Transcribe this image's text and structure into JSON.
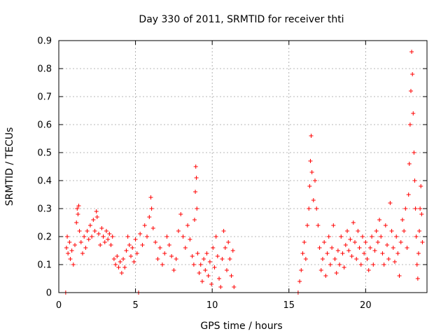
{
  "chart_data": {
    "type": "scatter",
    "title": "Day 330 of 2011, SRMTID for receiver thti",
    "xlabel": "GPS time / hours",
    "ylabel": "SRMTID / TECUs",
    "xlim": [
      0,
      24
    ],
    "ylim": [
      0,
      0.9
    ],
    "xticks": [
      0,
      5,
      10,
      15,
      20
    ],
    "xtick_labels": [
      "0",
      "5",
      "10",
      "15",
      "20"
    ],
    "yticks": [
      0,
      0.1,
      0.2,
      0.3,
      0.4,
      0.5,
      0.6,
      0.7,
      0.8,
      0.9
    ],
    "ytick_labels": [
      "0",
      "0.1",
      "0.2",
      "0.3",
      "0.4",
      "0.5",
      "0.6",
      "0.7",
      "0.8",
      "0.9"
    ],
    "grid": true,
    "marker": "+",
    "color": "#ff0000",
    "series": [
      {
        "name": "SRMTID",
        "points": [
          [
            0.45,
            0.0
          ],
          [
            5.2,
            0.0
          ],
          [
            0.5,
            0.16
          ],
          [
            0.55,
            0.2
          ],
          [
            0.6,
            0.14
          ],
          [
            0.7,
            0.18
          ],
          [
            0.75,
            0.12
          ],
          [
            0.85,
            0.15
          ],
          [
            0.95,
            0.1
          ],
          [
            1.05,
            0.17
          ],
          [
            1.15,
            0.25
          ],
          [
            1.2,
            0.3
          ],
          [
            1.25,
            0.28
          ],
          [
            1.3,
            0.31
          ],
          [
            1.35,
            0.22
          ],
          [
            1.45,
            0.18
          ],
          [
            1.55,
            0.14
          ],
          [
            1.65,
            0.2
          ],
          [
            1.75,
            0.16
          ],
          [
            1.85,
            0.22
          ],
          [
            1.95,
            0.19
          ],
          [
            2.05,
            0.24
          ],
          [
            2.15,
            0.2
          ],
          [
            2.25,
            0.26
          ],
          [
            2.35,
            0.22
          ],
          [
            2.45,
            0.29
          ],
          [
            2.5,
            0.27
          ],
          [
            2.6,
            0.21
          ],
          [
            2.7,
            0.17
          ],
          [
            2.8,
            0.23
          ],
          [
            2.9,
            0.2
          ],
          [
            3.0,
            0.18
          ],
          [
            3.1,
            0.22
          ],
          [
            3.2,
            0.19
          ],
          [
            3.3,
            0.21
          ],
          [
            3.4,
            0.17
          ],
          [
            3.5,
            0.2
          ],
          [
            3.6,
            0.12
          ],
          [
            3.7,
            0.1
          ],
          [
            3.8,
            0.13
          ],
          [
            3.9,
            0.09
          ],
          [
            4.0,
            0.11
          ],
          [
            4.1,
            0.07
          ],
          [
            4.2,
            0.12
          ],
          [
            4.3,
            0.09
          ],
          [
            4.4,
            0.15
          ],
          [
            4.5,
            0.2
          ],
          [
            4.6,
            0.17
          ],
          [
            4.7,
            0.13
          ],
          [
            4.8,
            0.16
          ],
          [
            4.9,
            0.11
          ],
          [
            5.0,
            0.19
          ],
          [
            5.1,
            0.14
          ],
          [
            5.3,
            0.21
          ],
          [
            5.45,
            0.17
          ],
          [
            5.6,
            0.24
          ],
          [
            5.75,
            0.2
          ],
          [
            5.9,
            0.27
          ],
          [
            6.0,
            0.34
          ],
          [
            6.05,
            0.3
          ],
          [
            6.15,
            0.23
          ],
          [
            6.3,
            0.18
          ],
          [
            6.45,
            0.12
          ],
          [
            6.6,
            0.16
          ],
          [
            6.75,
            0.1
          ],
          [
            6.9,
            0.14
          ],
          [
            7.05,
            0.2
          ],
          [
            7.2,
            0.17
          ],
          [
            7.35,
            0.13
          ],
          [
            7.5,
            0.08
          ],
          [
            7.65,
            0.12
          ],
          [
            7.8,
            0.22
          ],
          [
            7.95,
            0.28
          ],
          [
            8.1,
            0.2
          ],
          [
            8.25,
            0.16
          ],
          [
            8.4,
            0.24
          ],
          [
            8.55,
            0.19
          ],
          [
            8.7,
            0.13
          ],
          [
            8.8,
            0.1
          ],
          [
            8.85,
            0.26
          ],
          [
            8.9,
            0.36
          ],
          [
            8.93,
            0.45
          ],
          [
            8.97,
            0.41
          ],
          [
            9.0,
            0.3
          ],
          [
            9.05,
            0.14
          ],
          [
            9.15,
            0.07
          ],
          [
            9.25,
            0.1
          ],
          [
            9.35,
            0.04
          ],
          [
            9.45,
            0.12
          ],
          [
            9.55,
            0.08
          ],
          [
            9.65,
            0.14
          ],
          [
            9.75,
            0.06
          ],
          [
            9.85,
            0.11
          ],
          [
            9.95,
            0.03
          ],
          [
            10.05,
            0.16
          ],
          [
            10.15,
            0.09
          ],
          [
            10.25,
            0.2
          ],
          [
            10.35,
            0.13
          ],
          [
            10.45,
            0.05
          ],
          [
            10.55,
            0.02
          ],
          [
            10.65,
            0.12
          ],
          [
            10.75,
            0.22
          ],
          [
            10.85,
            0.16
          ],
          [
            10.95,
            0.08
          ],
          [
            11.05,
            0.18
          ],
          [
            11.15,
            0.12
          ],
          [
            11.25,
            0.06
          ],
          [
            11.35,
            0.15
          ],
          [
            11.42,
            0.02
          ],
          [
            15.6,
            0.0
          ],
          [
            15.7,
            0.04
          ],
          [
            15.8,
            0.08
          ],
          [
            15.9,
            0.14
          ],
          [
            16.0,
            0.18
          ],
          [
            16.1,
            0.12
          ],
          [
            16.2,
            0.24
          ],
          [
            16.3,
            0.3
          ],
          [
            16.35,
            0.38
          ],
          [
            16.4,
            0.47
          ],
          [
            16.45,
            0.56
          ],
          [
            16.5,
            0.43
          ],
          [
            16.6,
            0.33
          ],
          [
            16.7,
            0.4
          ],
          [
            16.8,
            0.3
          ],
          [
            16.9,
            0.24
          ],
          [
            17.0,
            0.16
          ],
          [
            17.1,
            0.08
          ],
          [
            17.2,
            0.12
          ],
          [
            17.3,
            0.18
          ],
          [
            17.4,
            0.06
          ],
          [
            17.5,
            0.14
          ],
          [
            17.6,
            0.2
          ],
          [
            17.7,
            0.1
          ],
          [
            17.8,
            0.16
          ],
          [
            17.9,
            0.24
          ],
          [
            18.0,
            0.12
          ],
          [
            18.1,
            0.07
          ],
          [
            18.2,
            0.15
          ],
          [
            18.3,
            0.1
          ],
          [
            18.4,
            0.2
          ],
          [
            18.5,
            0.14
          ],
          [
            18.6,
            0.09
          ],
          [
            18.7,
            0.17
          ],
          [
            18.8,
            0.22
          ],
          [
            18.9,
            0.15
          ],
          [
            19.0,
            0.19
          ],
          [
            19.1,
            0.13
          ],
          [
            19.2,
            0.25
          ],
          [
            19.3,
            0.18
          ],
          [
            19.4,
            0.12
          ],
          [
            19.5,
            0.22
          ],
          [
            19.6,
            0.16
          ],
          [
            19.7,
            0.1
          ],
          [
            19.8,
            0.2
          ],
          [
            19.9,
            0.14
          ],
          [
            20.0,
            0.18
          ],
          [
            20.1,
            0.12
          ],
          [
            20.2,
            0.08
          ],
          [
            20.3,
            0.16
          ],
          [
            20.4,
            0.2
          ],
          [
            20.5,
            0.1
          ],
          [
            20.6,
            0.15
          ],
          [
            20.7,
            0.22
          ],
          [
            20.8,
            0.18
          ],
          [
            20.9,
            0.26
          ],
          [
            21.0,
            0.2
          ],
          [
            21.1,
            0.14
          ],
          [
            21.2,
            0.1
          ],
          [
            21.3,
            0.24
          ],
          [
            21.4,
            0.17
          ],
          [
            21.5,
            0.12
          ],
          [
            21.6,
            0.32
          ],
          [
            21.7,
            0.22
          ],
          [
            21.8,
            0.16
          ],
          [
            21.9,
            0.11
          ],
          [
            22.0,
            0.2
          ],
          [
            22.1,
            0.14
          ],
          [
            22.2,
            0.06
          ],
          [
            22.3,
            0.18
          ],
          [
            22.4,
            0.26
          ],
          [
            22.5,
            0.22
          ],
          [
            22.6,
            0.3
          ],
          [
            22.7,
            0.16
          ],
          [
            22.8,
            0.35
          ],
          [
            22.85,
            0.46
          ],
          [
            22.9,
            0.6
          ],
          [
            22.95,
            0.72
          ],
          [
            23.0,
            0.86
          ],
          [
            23.05,
            0.78
          ],
          [
            23.1,
            0.64
          ],
          [
            23.15,
            0.5
          ],
          [
            23.2,
            0.4
          ],
          [
            23.25,
            0.3
          ],
          [
            23.3,
            0.2
          ],
          [
            23.35,
            0.1
          ],
          [
            23.4,
            0.05
          ],
          [
            23.45,
            0.14
          ],
          [
            23.5,
            0.22
          ],
          [
            23.55,
            0.3
          ],
          [
            23.6,
            0.38
          ],
          [
            23.65,
            0.28
          ],
          [
            23.7,
            0.18
          ]
        ]
      }
    ]
  }
}
